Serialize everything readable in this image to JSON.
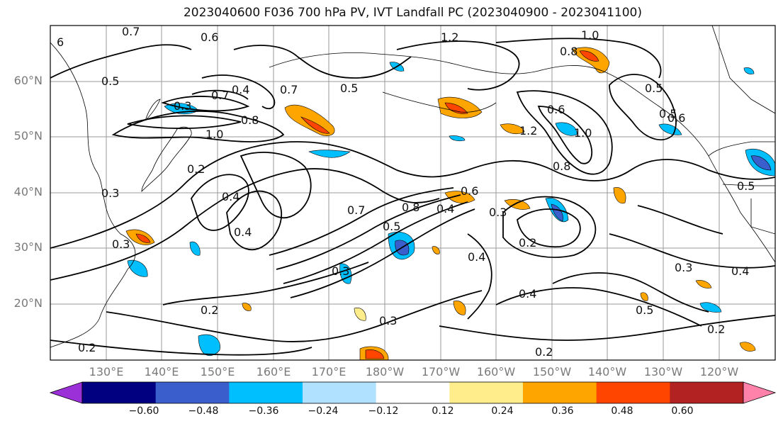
{
  "title": "2023040600 F036 700 hPa PV, IVT Landfall PC (2023040900 - 2023041100)",
  "lat_labels": [
    "60°N",
    "50°N",
    "40°N",
    "30°N",
    "20°N"
  ],
  "lon_labels": [
    "130°E",
    "140°E",
    "150°E",
    "160°E",
    "170°E",
    "180°W",
    "170°W",
    "160°W",
    "150°W",
    "140°W",
    "130°W",
    "120°W"
  ],
  "colorbar": {
    "ticks": [
      "−0.60",
      "−0.48",
      "−0.36",
      "−0.24",
      "−0.12",
      "0.12",
      "0.24",
      "0.36",
      "0.48",
      "0.60"
    ],
    "colors": [
      "#9b30d9",
      "#000080",
      "#3a5fcd",
      "#00bfff",
      "#b0e2ff",
      "#ffffff",
      "#ffec8b",
      "#ffa500",
      "#ff4500",
      "#b22222",
      "#ff82ab"
    ]
  },
  "contour_labels": [
    "6",
    "0.5",
    "0.7",
    "0.6",
    "0.5",
    "1.2",
    "1.0",
    "0.8",
    "0.3",
    "0.7",
    "0.4",
    "0.8",
    "1.0",
    "0.7",
    "0.5",
    "0.6",
    "1.0",
    "1.2",
    "0.5",
    "0.8",
    "0.3",
    "0.4",
    "0.6",
    "0.7",
    "0.8",
    "0.4",
    "0.3",
    "0.4",
    "0.5",
    "0.3",
    "0.2",
    "0.4",
    "0.3",
    "0.4",
    "0.2",
    "0.5",
    "0.2",
    "0.3",
    "0.2",
    "0.4",
    "0.2",
    "0.6",
    "0.3",
    "0.5",
    "0.2"
  ]
}
